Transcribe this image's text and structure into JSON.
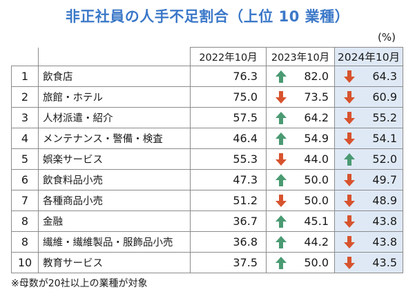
{
  "title": "非正社員の人手不足割合（上位 10 業種）",
  "unit": "(%)",
  "headers": {
    "y2022": "2022年10月",
    "y2023": "2023年10月",
    "y2024": "2024年10月"
  },
  "colors": {
    "up": "#4a9a72",
    "down": "#d7532e",
    "highlight": "#dfe9f6",
    "title": "#3b78c8"
  },
  "rows": [
    {
      "rank": "1",
      "name": "飲食店",
      "y2022": "76.3",
      "y2023": "82.0",
      "dir2023": "up",
      "y2024": "64.3",
      "dir2024": "down"
    },
    {
      "rank": "2",
      "name": "旅館・ホテル",
      "y2022": "75.0",
      "y2023": "73.5",
      "dir2023": "down",
      "y2024": "60.9",
      "dir2024": "down"
    },
    {
      "rank": "3",
      "name": "人材派遣・紹介",
      "y2022": "57.5",
      "y2023": "64.2",
      "dir2023": "up",
      "y2024": "55.2",
      "dir2024": "down"
    },
    {
      "rank": "4",
      "name": "メンテナンス・警備・検査",
      "y2022": "46.4",
      "y2023": "54.9",
      "dir2023": "up",
      "y2024": "54.1",
      "dir2024": "down"
    },
    {
      "rank": "5",
      "name": "娯楽サービス",
      "y2022": "55.3",
      "y2023": "44.0",
      "dir2023": "down",
      "y2024": "52.0",
      "dir2024": "up"
    },
    {
      "rank": "6",
      "name": "飲食料品小売",
      "y2022": "47.3",
      "y2023": "50.0",
      "dir2023": "up",
      "y2024": "49.7",
      "dir2024": "down"
    },
    {
      "rank": "7",
      "name": "各種商品小売",
      "y2022": "51.2",
      "y2023": "50.0",
      "dir2023": "down",
      "y2024": "48.9",
      "dir2024": "down"
    },
    {
      "rank": "8",
      "name": "金融",
      "y2022": "36.7",
      "y2023": "45.1",
      "dir2023": "up",
      "y2024": "43.8",
      "dir2024": "down"
    },
    {
      "rank": "8",
      "name": "繊維・繊維製品・服飾品小売",
      "y2022": "36.8",
      "y2023": "44.2",
      "dir2023": "up",
      "y2024": "43.8",
      "dir2024": "down"
    },
    {
      "rank": "10",
      "name": "教育サービス",
      "y2022": "37.5",
      "y2023": "50.0",
      "dir2023": "up",
      "y2024": "43.5",
      "dir2024": "down"
    }
  ],
  "footnote": "※母数が20社以上の業種が対象"
}
